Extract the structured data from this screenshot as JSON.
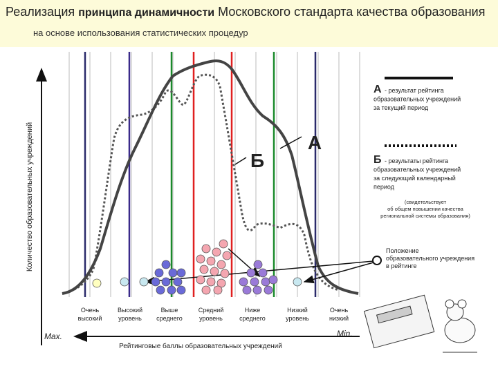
{
  "header": {
    "title_start": "Реализация",
    "title_bold": "принципа динамичности",
    "title_end": "Московского стандарта качества образования",
    "subtitle": "на основе использования статистических процедур"
  },
  "diagram": {
    "y_axis_label": "Количество образовательных учреждений",
    "x_axis_label": "Рейтинговые баллы образовательных учреждений",
    "x_max": "Max.",
    "x_min": "Min.",
    "curve_b_letter": "Б",
    "curve_a_letter": "А",
    "levels": [
      [
        "Очень",
        "высокий"
      ],
      [
        "Высокий",
        "уровень"
      ],
      [
        "Выше",
        "среднего"
      ],
      [
        "Средний",
        "уровень"
      ],
      [
        "Ниже",
        "среднего"
      ],
      [
        "Низкий",
        "уровень"
      ],
      [
        "Очень",
        "низкий"
      ]
    ]
  },
  "legend": {
    "a_letter": "А",
    "a_lines": [
      "- результат рейтинга",
      "образовательных учреждений",
      "за текущий период"
    ],
    "b_letter": "Б",
    "b_lines": [
      "- результаты рейтинга",
      "образовательных учреждений",
      "за следующий календарный",
      "период"
    ],
    "note_lines": [
      "(свидетельствует",
      "об общем повышении качества",
      "региональной системы образования)"
    ],
    "circle_lines": [
      "Положение",
      "образовательного учреждения",
      "в рейтинге"
    ]
  }
}
